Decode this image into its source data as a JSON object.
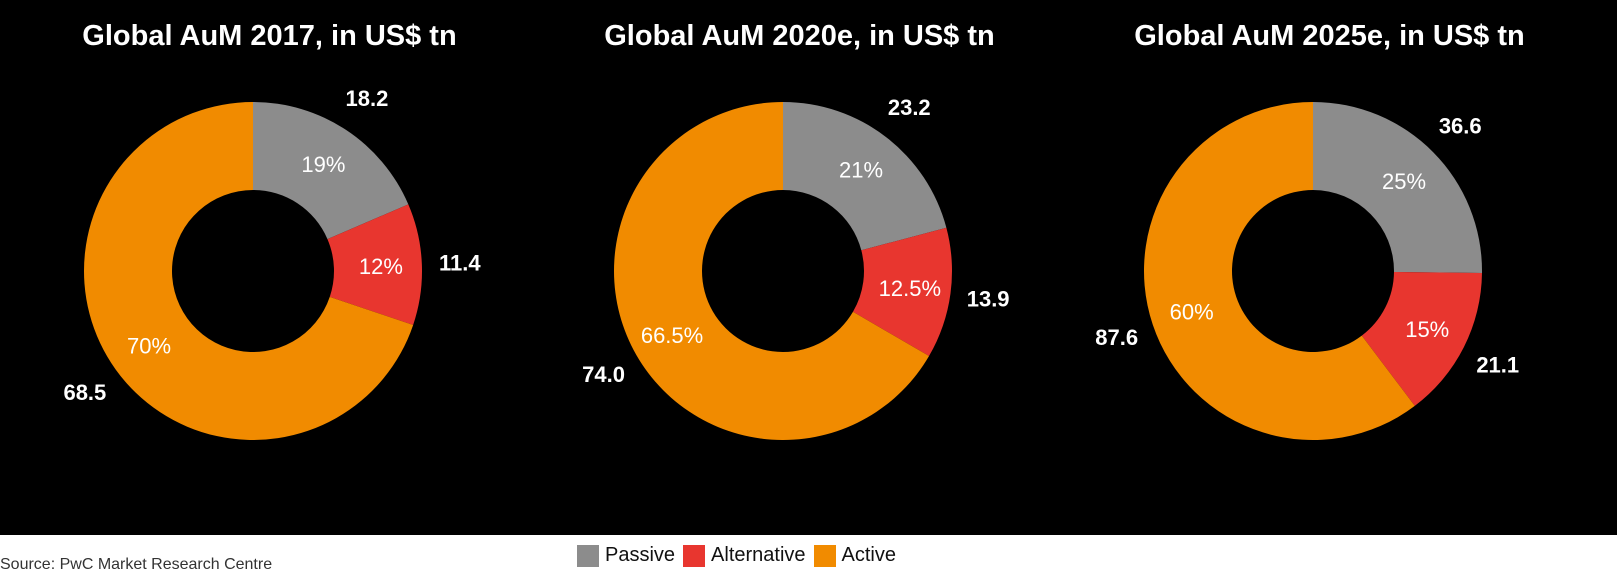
{
  "source": "Source: PwC Market Research Centre",
  "colors": {
    "Passive": "#8c8c8c",
    "Alternative": "#e8362f",
    "Active": "#f18b00"
  },
  "chart_data": [
    {
      "type": "pie",
      "title": "Global AuM 2017, in US$ tn",
      "categories": [
        "Passive",
        "Alternative",
        "Active"
      ],
      "values": [
        18.2,
        11.4,
        68.5
      ],
      "value_labels": [
        "18.2",
        "11.4",
        "68.5"
      ],
      "percent_labels": [
        "19%",
        "12%",
        "70%"
      ]
    },
    {
      "type": "pie",
      "title": "Global AuM 2020e, in US$ tn",
      "categories": [
        "Passive",
        "Alternative",
        "Active"
      ],
      "values": [
        23.2,
        13.9,
        74.0
      ],
      "value_labels": [
        "23.2",
        "13.9",
        "74.0"
      ],
      "percent_labels": [
        "21%",
        "12.5%",
        "66.5%"
      ]
    },
    {
      "type": "pie",
      "title": "Global AuM 2025e, in US$ tn",
      "categories": [
        "Passive",
        "Alternative",
        "Active"
      ],
      "values": [
        36.6,
        21.1,
        87.6
      ],
      "value_labels": [
        "36.6",
        "21.1",
        "87.6"
      ],
      "percent_labels": [
        "25%",
        "15%",
        "60%"
      ]
    }
  ],
  "legend": [
    {
      "label": "Passive",
      "color": "#8c8c8c"
    },
    {
      "label": "Alternative",
      "color": "#e8362f"
    },
    {
      "label": "Active",
      "color": "#f18b00"
    }
  ]
}
